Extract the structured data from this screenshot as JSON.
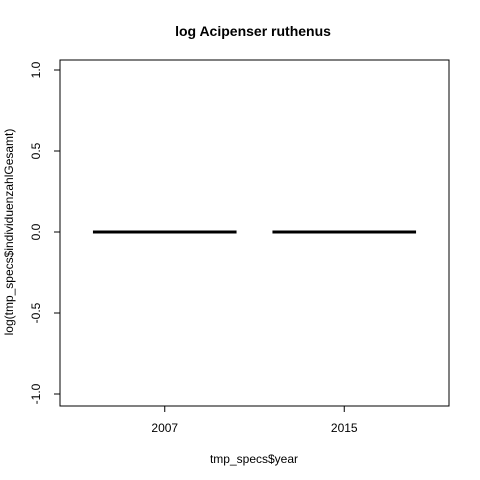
{
  "chart_data": {
    "type": "bar",
    "title": "log Acipenser ruthenus",
    "xlabel": "tmp_specs$year",
    "ylabel": "log(tmp_specs$individuenzahlGesamt)",
    "categories": [
      "2007",
      "2015"
    ],
    "values": [
      0.0,
      0.0
    ],
    "ylim": [
      -1.0,
      1.0
    ],
    "yticks": [
      -1.0,
      -0.5,
      0.0,
      0.5,
      1.0
    ],
    "ytick_labels": [
      "-1.0",
      "-0.5",
      "0.0",
      "0.5",
      "1.0"
    ],
    "grid": false,
    "legend": "none",
    "colors": {
      "median_line": "#000000",
      "axis": "#000000",
      "background": "#ffffff"
    }
  }
}
